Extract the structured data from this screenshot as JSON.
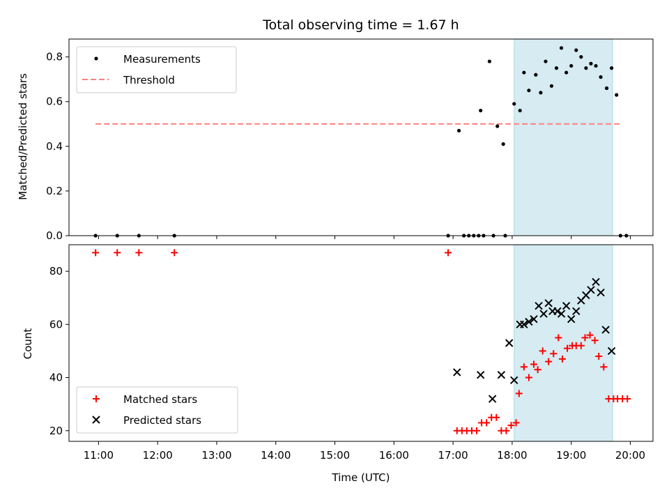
{
  "chart_data": [
    {
      "type": "scatter",
      "title": "Total observing time = 1.67 h",
      "xlabel": "",
      "ylabel": "Matched/Predicted stars",
      "ylim": [
        0,
        0.88
      ],
      "yticks": [
        "0.0",
        "0.2",
        "0.4",
        "0.6",
        "0.8"
      ],
      "xlim": [
        "10:30",
        "20:23"
      ],
      "shaded_interval": [
        "18:02",
        "19:42"
      ],
      "grid": false,
      "legend_position": "upper-left",
      "legend": [
        "Measurements",
        "Threshold"
      ],
      "threshold": {
        "value": 0.5,
        "x_range": [
          "10:57",
          "19:52"
        ],
        "color": "#ff7f7f"
      },
      "series": [
        {
          "name": "Measurements",
          "color": "#000000",
          "x": [
            "10:57",
            "11:19",
            "11:41",
            "12:17",
            "16:55",
            "17:06",
            "17:11",
            "17:16",
            "17:21",
            "17:26",
            "17:31",
            "17:41",
            "17:53",
            "18:02",
            "17:28",
            "17:37",
            "17:45",
            "17:51",
            "18:08",
            "18:12",
            "18:17",
            "18:24",
            "18:29",
            "18:34",
            "18:40",
            "18:45",
            "18:50",
            "18:55",
            "19:00",
            "19:05",
            "19:10",
            "19:15",
            "19:20",
            "19:25",
            "19:30",
            "19:36",
            "19:41",
            "19:46",
            "19:50",
            "19:56"
          ],
          "y": [
            0,
            0,
            0,
            0,
            0,
            0.47,
            0,
            0,
            0,
            0,
            0,
            0,
            0,
            0.59,
            0.56,
            0.78,
            0.49,
            0.41,
            0.56,
            0.73,
            0.65,
            0.72,
            0.64,
            0.78,
            0.67,
            0.75,
            0.84,
            0.73,
            0.76,
            0.83,
            0.8,
            0.75,
            0.77,
            0.76,
            0.71,
            0.66,
            0.75,
            0.63,
            0,
            0
          ]
        }
      ]
    },
    {
      "type": "scatter",
      "title": "",
      "xlabel": "Time (UTC)",
      "ylabel": "Count",
      "ylim": [
        16,
        90
      ],
      "yticks": [
        "20",
        "40",
        "60",
        "80"
      ],
      "xticks": [
        "11:00",
        "12:00",
        "13:00",
        "14:00",
        "15:00",
        "16:00",
        "17:00",
        "18:00",
        "19:00",
        "20:00"
      ],
      "xlim": [
        "10:30",
        "20:23"
      ],
      "shaded_interval": [
        "18:02",
        "19:42"
      ],
      "grid": false,
      "legend_position": "lower-left",
      "legend": [
        "Matched stars",
        "Predicted stars"
      ],
      "series": [
        {
          "name": "Matched stars",
          "color": "#ff0000",
          "marker": "plus",
          "x": [
            "10:57",
            "11:19",
            "11:41",
            "12:17",
            "16:55",
            "17:04",
            "17:09",
            "17:14",
            "17:19",
            "17:24",
            "17:29",
            "17:34",
            "17:39",
            "17:44",
            "17:49",
            "17:54",
            "17:59",
            "18:04",
            "18:07",
            "18:12",
            "18:17",
            "18:22",
            "18:26",
            "18:31",
            "18:37",
            "18:42",
            "18:47",
            "18:51",
            "18:56",
            "19:01",
            "19:05",
            "19:10",
            "19:14",
            "19:19",
            "19:24",
            "19:28",
            "19:33",
            "19:38",
            "19:43",
            "19:47",
            "19:52",
            "19:57"
          ],
          "y": [
            87,
            87,
            87,
            87,
            87,
            20,
            20,
            20,
            20,
            20,
            23,
            23,
            25,
            25,
            20,
            20,
            22,
            23,
            34,
            44,
            40,
            45,
            43,
            50,
            46,
            49,
            55,
            47,
            51,
            52,
            52,
            52,
            55,
            56,
            54,
            48,
            44,
            32,
            32,
            32,
            32,
            32
          ]
        },
        {
          "name": "Predicted stars",
          "color": "#000000",
          "marker": "x",
          "x": [
            "17:04",
            "17:28",
            "17:40",
            "17:49",
            "17:57",
            "18:02",
            "18:08",
            "18:12",
            "18:17",
            "18:22",
            "18:27",
            "18:32",
            "18:37",
            "18:41",
            "18:46",
            "18:50",
            "18:55",
            "19:00",
            "19:05",
            "19:10",
            "19:15",
            "19:20",
            "19:25",
            "19:30",
            "19:35",
            "19:41"
          ],
          "y": [
            42,
            41,
            32,
            41,
            53,
            39,
            60,
            60,
            61,
            62,
            67,
            64,
            68,
            65,
            65,
            64,
            67,
            62,
            65,
            69,
            71,
            73,
            76,
            72,
            58,
            50
          ]
        }
      ]
    }
  ]
}
